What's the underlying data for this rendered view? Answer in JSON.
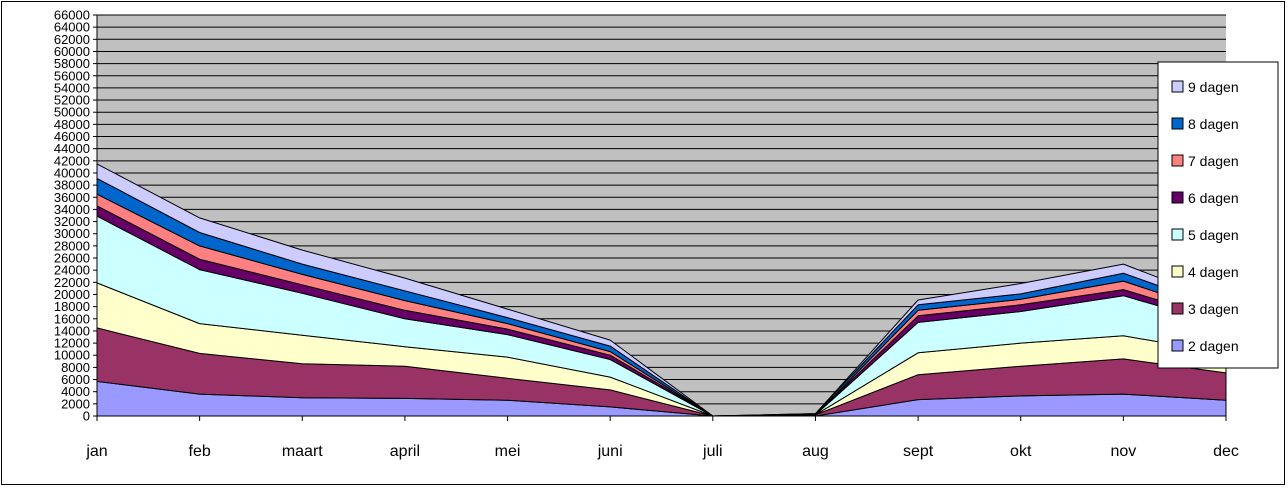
{
  "chart_data": {
    "type": "area",
    "stacked": true,
    "categories": [
      "jan",
      "feb",
      "maart",
      "april",
      "mei",
      "juni",
      "juli",
      "aug",
      "sept",
      "okt",
      "nov",
      "dec"
    ],
    "yticks": [
      0,
      2000,
      4000,
      6000,
      8000,
      10000,
      12000,
      14000,
      16000,
      18000,
      20000,
      22000,
      24000,
      26000,
      28000,
      30000,
      32000,
      34000,
      36000,
      38000,
      40000,
      42000,
      44000,
      46000,
      48000,
      50000,
      52000,
      54000,
      56000,
      58000,
      60000,
      62000,
      64000,
      66000
    ],
    "ylim": [
      0,
      66000
    ],
    "grid": true,
    "legend_position": "right",
    "plot_background": "#C0C0C0",
    "series": [
      {
        "name": "2 dagen",
        "color": "#9999FF",
        "values": [
          5700,
          3600,
          3000,
          2900,
          2600,
          1500,
          0,
          0,
          2700,
          3300,
          3600,
          2600
        ]
      },
      {
        "name": "3 dagen",
        "color": "#993366",
        "values": [
          8800,
          6700,
          5600,
          5300,
          3600,
          2800,
          0,
          200,
          4100,
          4900,
          5800,
          4500
        ]
      },
      {
        "name": "4 dagen",
        "color": "#FFFFCC",
        "values": [
          7400,
          4900,
          4700,
          3200,
          3500,
          2100,
          0,
          0,
          3600,
          3800,
          3800,
          3200
        ]
      },
      {
        "name": "5 dagen",
        "color": "#CCFFFF",
        "values": [
          11000,
          8900,
          6900,
          4600,
          3700,
          2900,
          0,
          0,
          5000,
          5200,
          6600,
          4600
        ]
      },
      {
        "name": "6 dagen",
        "color": "#660066",
        "values": [
          1700,
          1700,
          1400,
          1400,
          900,
          700,
          0,
          0,
          1100,
          1100,
          1000,
          800
        ]
      },
      {
        "name": "7 dagen",
        "color": "#FF8080",
        "values": [
          1900,
          2200,
          1700,
          1600,
          900,
          600,
          0,
          0,
          900,
          900,
          1400,
          900
        ]
      },
      {
        "name": "8 dagen",
        "color": "#0066CC",
        "values": [
          2600,
          2200,
          1700,
          1600,
          1000,
          900,
          0,
          200,
          900,
          900,
          1300,
          900
        ]
      },
      {
        "name": "9 dagen",
        "color": "#CCCCFF",
        "values": [
          2400,
          2400,
          2300,
          2100,
          1400,
          1000,
          0,
          0,
          800,
          1700,
          1500,
          1000
        ]
      }
    ]
  }
}
